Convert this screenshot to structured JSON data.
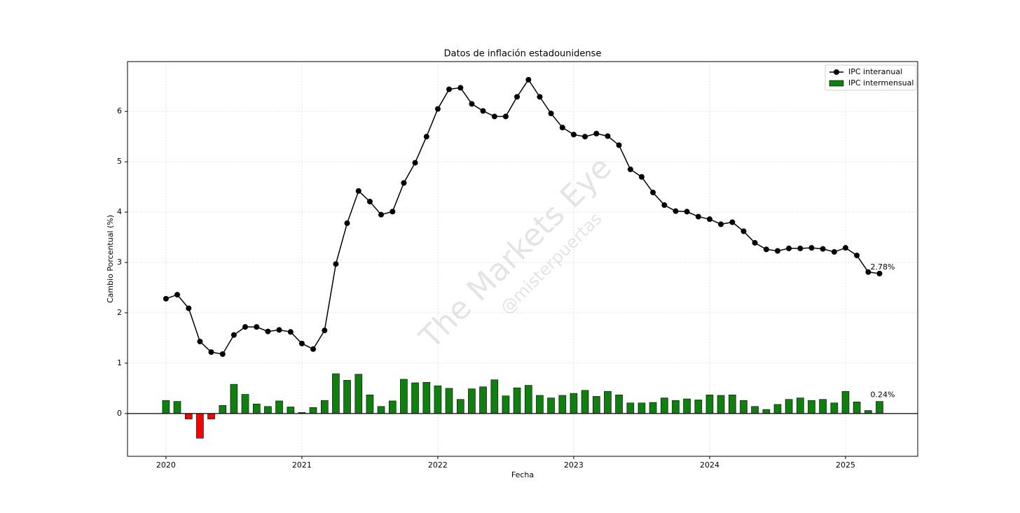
{
  "chart_data": {
    "type": "combo",
    "title": "Datos de inflación estadounidense",
    "x_label": "Fecha",
    "y_label": "Cambio Porcentual (%)",
    "watermark": [
      "The Markets Eye",
      "@misterpuertas"
    ],
    "x": [
      2020,
      2020.083,
      2020.167,
      2020.25,
      2020.333,
      2020.417,
      2020.5,
      2020.583,
      2020.667,
      2020.75,
      2020.833,
      2020.917,
      2021,
      2021.083,
      2021.167,
      2021.25,
      2021.333,
      2021.417,
      2021.5,
      2021.583,
      2021.667,
      2021.75,
      2021.833,
      2021.917,
      2022,
      2022.083,
      2022.167,
      2022.25,
      2022.333,
      2022.417,
      2022.5,
      2022.583,
      2022.667,
      2022.75,
      2022.833,
      2022.917,
      2023,
      2023.083,
      2023.167,
      2023.25,
      2023.333,
      2023.417,
      2023.5,
      2023.583,
      2023.667,
      2023.75,
      2023.833,
      2023.917,
      2024,
      2024.083,
      2024.167,
      2024.25,
      2024.333,
      2024.417,
      2024.5,
      2024.583,
      2024.667,
      2024.75,
      2024.833,
      2024.917,
      2025,
      2025.083,
      2025.167,
      2025.25
    ],
    "series": [
      {
        "name": "IPC interanual",
        "type": "line",
        "color": "#000000",
        "values": [
          2.28,
          2.36,
          2.09,
          1.43,
          1.22,
          1.18,
          1.56,
          1.72,
          1.72,
          1.63,
          1.66,
          1.62,
          1.39,
          1.28,
          1.65,
          2.97,
          3.78,
          4.42,
          4.21,
          3.95,
          4.01,
          4.58,
          4.98,
          5.5,
          6.05,
          6.44,
          6.47,
          6.15,
          6.01,
          5.9,
          5.9,
          6.29,
          6.63,
          6.29,
          5.96,
          5.68,
          5.54,
          5.5,
          5.56,
          5.51,
          5.33,
          4.85,
          4.7,
          4.39,
          4.14,
          4.02,
          4.01,
          3.91,
          3.86,
          3.76,
          3.8,
          3.62,
          3.39,
          3.26,
          3.23,
          3.28,
          3.28,
          3.29,
          3.27,
          3.21,
          3.29,
          3.14,
          2.81,
          2.78
        ],
        "annotation": "2.78%"
      },
      {
        "name": "IPC intermensual",
        "type": "bar",
        "color": "#0f7f0f",
        "negative_color": "#ff0000",
        "values": [
          0.26,
          0.24,
          -0.11,
          -0.49,
          -0.11,
          0.16,
          0.58,
          0.38,
          0.19,
          0.14,
          0.25,
          0.13,
          0.02,
          0.12,
          0.26,
          0.79,
          0.66,
          0.78,
          0.37,
          0.14,
          0.25,
          0.68,
          0.61,
          0.62,
          0.55,
          0.5,
          0.28,
          0.49,
          0.53,
          0.67,
          0.35,
          0.51,
          0.56,
          0.36,
          0.31,
          0.36,
          0.4,
          0.46,
          0.34,
          0.44,
          0.37,
          0.21,
          0.21,
          0.22,
          0.31,
          0.26,
          0.29,
          0.27,
          0.37,
          0.36,
          0.37,
          0.26,
          0.14,
          0.08,
          0.18,
          0.28,
          0.31,
          0.26,
          0.28,
          0.21,
          0.44,
          0.23,
          0.06,
          0.24
        ],
        "annotation": "0.24%"
      }
    ],
    "xlim": [
      2019.717,
      2025.531
    ],
    "xticks": [
      2020,
      2021,
      2022,
      2023,
      2024,
      2025
    ],
    "ylim": [
      -0.85,
      6.99
    ],
    "yticks": [
      0,
      1,
      2,
      3,
      4,
      5,
      6
    ],
    "grid": true,
    "legend": "upper right"
  }
}
